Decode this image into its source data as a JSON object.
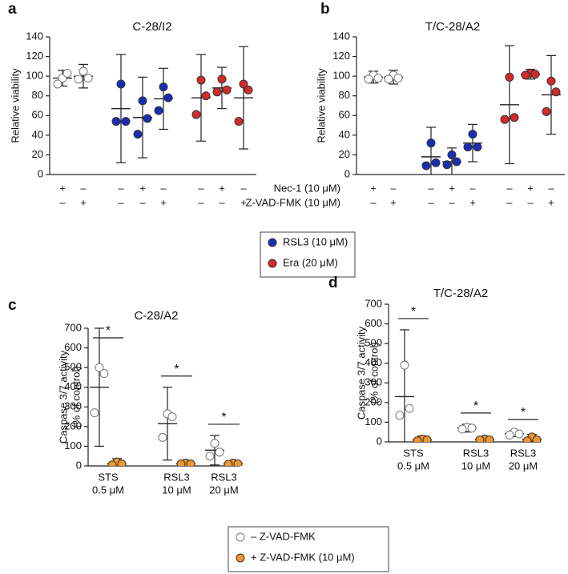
{
  "chart_data": [
    {
      "type": "dotplot",
      "panel": "a",
      "title": "C-28/I2",
      "y_label": [
        "Relative viability"
      ],
      "ylim": [
        0,
        140
      ],
      "yticks": [
        0,
        20,
        40,
        60,
        80,
        100,
        120,
        140
      ],
      "groups": [
        {
          "color": "#ffffff",
          "values": [
            98,
            92,
            103
          ],
          "mean": 98,
          "err": 8
        },
        {
          "color": "#ffffff",
          "values": [
            105,
            97,
            98
          ],
          "mean": 100,
          "err": 12
        },
        {
          "color": "#1a2db5",
          "values": [
            92,
            54,
            54
          ],
          "mean": 67,
          "err": 55
        },
        {
          "color": "#1a2db5",
          "values": [
            75,
            41,
            57
          ],
          "mean": 58,
          "err": 41
        },
        {
          "color": "#1a2db5",
          "values": [
            89,
            65,
            78
          ],
          "mean": 77,
          "err": 31
        },
        {
          "color": "#d42a2a",
          "values": [
            96,
            61,
            80
          ],
          "mean": 78,
          "err": 44
        },
        {
          "color": "#d42a2a",
          "values": [
            97,
            84,
            86
          ],
          "mean": 88,
          "err": 21
        },
        {
          "color": "#d42a2a",
          "values": [
            92,
            54,
            86
          ],
          "mean": 78,
          "err": 52
        }
      ],
      "rows": [
        {
          "name": "Nec-1 (10 μM)",
          "signs": [
            "+",
            "–",
            "–",
            "+",
            "–",
            "–",
            "+",
            "–"
          ]
        },
        {
          "name": "Z-VAD-FMK (10 μM)",
          "signs": [
            "–",
            "+",
            "–",
            "–",
            "+",
            "–",
            "–",
            "+"
          ]
        }
      ],
      "legend": [
        {
          "name": "RSL3 (10 μM)",
          "color": "#1a2db5"
        },
        {
          "name": "Era (20 μM)",
          "color": "#d42a2a"
        }
      ]
    },
    {
      "type": "dotplot",
      "panel": "b",
      "title": "T/C-28/A2",
      "y_label": [
        "Relative viability"
      ],
      "ylim": [
        0,
        140
      ],
      "yticks": [
        0,
        20,
        40,
        60,
        80,
        100,
        120,
        140
      ],
      "groups": [
        {
          "color": "#ffffff",
          "values": [
            101,
            97,
            98
          ],
          "mean": 99,
          "err": 6
        },
        {
          "color": "#ffffff",
          "values": [
            101,
            97,
            98
          ],
          "mean": 99,
          "err": 7
        },
        {
          "color": "#1a2db5",
          "values": [
            32,
            9,
            12
          ],
          "mean": 18,
          "err": 30
        },
        {
          "color": "#1a2db5",
          "values": [
            20,
            10,
            13
          ],
          "mean": 13,
          "err": 14
        },
        {
          "color": "#1a2db5",
          "values": [
            41,
            28,
            28
          ],
          "mean": 32,
          "err": 19
        },
        {
          "color": "#d42a2a",
          "values": [
            99,
            56,
            58
          ],
          "mean": 71,
          "err": 60
        },
        {
          "color": "#d42a2a",
          "values": [
            103,
            101,
            102
          ],
          "mean": 102,
          "err": 5
        },
        {
          "color": "#d42a2a",
          "values": [
            95,
            64,
            84
          ],
          "mean": 81,
          "err": 40
        }
      ],
      "rows": [
        {
          "signs": [
            "+",
            "–",
            "–",
            "+",
            "–",
            "–",
            "+",
            "–"
          ]
        },
        {
          "signs": [
            "–",
            "+",
            "–",
            "–",
            "+",
            "–",
            "–",
            "+"
          ]
        }
      ]
    },
    {
      "type": "dotplot",
      "panel": "c",
      "title": "C-28/A2",
      "y_label": [
        "Caspase 3/7 activity",
        "(% of control)"
      ],
      "ylim": [
        0,
        700
      ],
      "yticks": [
        0,
        100,
        200,
        300,
        400,
        500,
        600,
        700
      ],
      "categories": [
        [
          "STS",
          "0.5 μM"
        ],
        [
          "RSL3",
          "10 μM"
        ],
        [
          "RSL3",
          "20 μM"
        ]
      ],
      "groups": [
        {
          "color": "#ffffff",
          "values": [
            500,
            270,
            470
          ],
          "mean": 400,
          "err": 300
        },
        {
          "color": "#f0962e",
          "values": [
            20,
            5,
            10
          ],
          "mean": 12,
          "err": 25
        },
        {
          "color": "#ffffff",
          "values": [
            265,
            145,
            250
          ],
          "mean": 215,
          "err": 185
        },
        {
          "color": "#f0962e",
          "values": [
            15,
            10,
            10
          ],
          "mean": 12,
          "err": 8
        },
        {
          "color": "#ffffff",
          "values": [
            115,
            50,
            70
          ],
          "mean": 80,
          "err": 75
        },
        {
          "color": "#f0962e",
          "values": [
            15,
            8,
            10
          ],
          "mean": 11,
          "err": 8
        }
      ],
      "significance": [
        "*",
        "*",
        "*"
      ],
      "legend": [
        {
          "name": "– Z-VAD-FMK",
          "color": "#ffffff"
        },
        {
          "name": "+ Z-VAD-FMK (10 μM)",
          "color": "#f0962e"
        }
      ]
    },
    {
      "type": "dotplot",
      "panel": "d",
      "title": "T/C-28/A2",
      "y_label": [
        "Caspase 3/7 activity",
        "(% of control)"
      ],
      "ylim": [
        0,
        700
      ],
      "yticks": [
        0,
        100,
        200,
        300,
        400,
        500,
        600,
        700
      ],
      "categories": [
        [
          "STS",
          "0.5 μM"
        ],
        [
          "RSL3",
          "10 μM"
        ],
        [
          "RSL3",
          "20 μM"
        ]
      ],
      "groups": [
        {
          "color": "#ffffff",
          "values": [
            390,
            135,
            170
          ],
          "mean": 230,
          "err": 340
        },
        {
          "color": "#f0962e",
          "values": [
            15,
            5,
            10
          ],
          "mean": 10,
          "err": 20
        },
        {
          "color": "#ffffff",
          "values": [
            75,
            65,
            70
          ],
          "mean": 70,
          "err": 20
        },
        {
          "color": "#f0962e",
          "values": [
            15,
            10,
            10
          ],
          "mean": 12,
          "err": 10
        },
        {
          "color": "#ffffff",
          "values": [
            50,
            35,
            40
          ],
          "mean": 42,
          "err": 15
        },
        {
          "color": "#f0962e",
          "values": [
            25,
            5,
            10
          ],
          "mean": 13,
          "err": 25
        }
      ],
      "significance": [
        "*",
        "*",
        "*"
      ]
    }
  ]
}
